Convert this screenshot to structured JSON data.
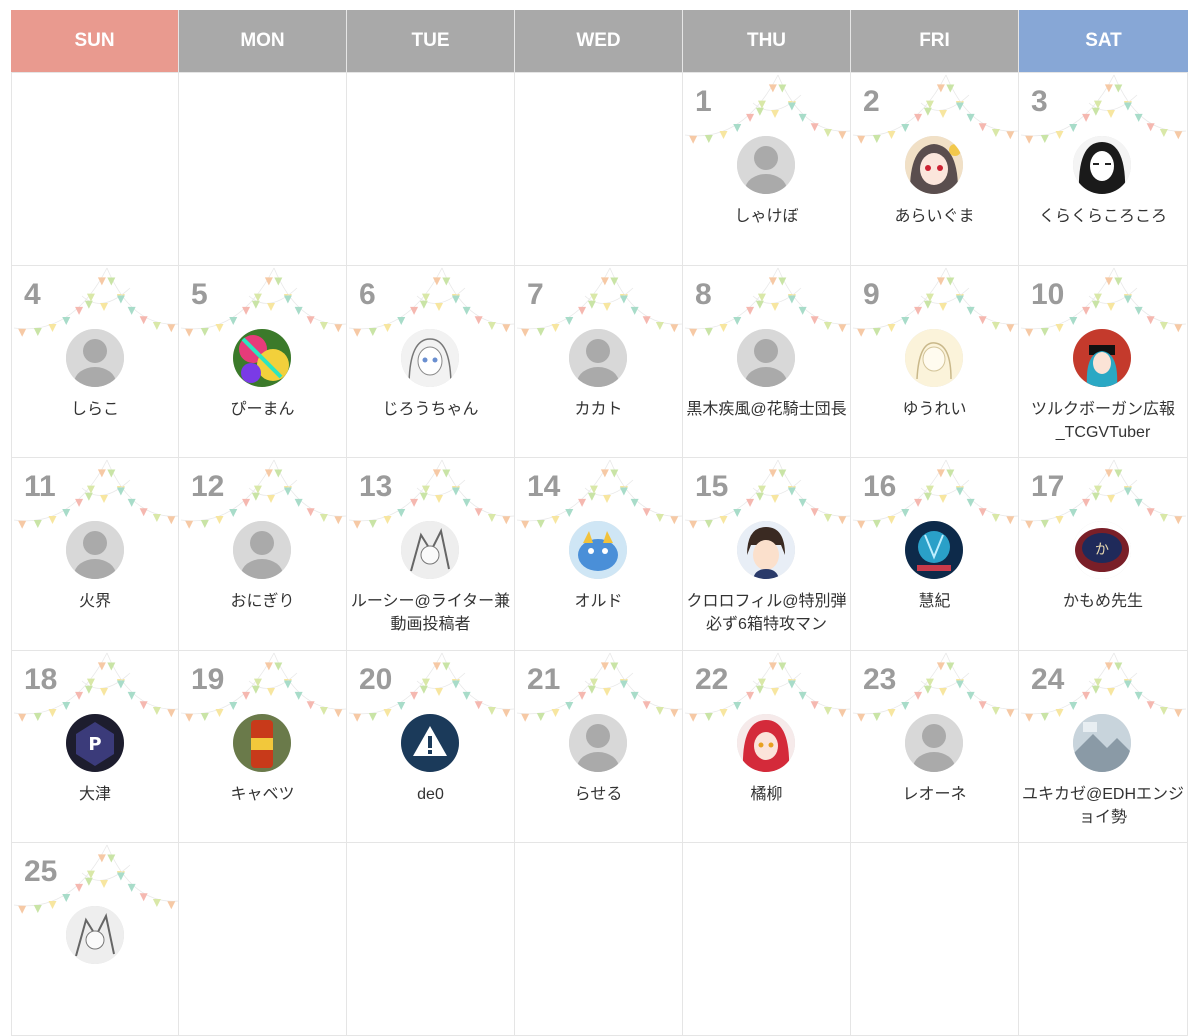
{
  "weekdays": [
    {
      "label": "SUN",
      "color": "#e99a8f"
    },
    {
      "label": "MON",
      "color": "#a9a9a9"
    },
    {
      "label": "TUE",
      "color": "#a9a9a9"
    },
    {
      "label": "WED",
      "color": "#a9a9a9"
    },
    {
      "label": "THU",
      "color": "#a9a9a9"
    },
    {
      "label": "FRI",
      "color": "#a9a9a9"
    },
    {
      "label": "SAT",
      "color": "#87a7d6"
    }
  ],
  "days": [
    null,
    null,
    null,
    null,
    {
      "day": "1",
      "name": "しゃけぼ",
      "avatar": "default-avatar"
    },
    {
      "day": "2",
      "name": "あらいぐま",
      "avatar": "anime-girl-avatar"
    },
    {
      "day": "3",
      "name": "くらくらころころ",
      "avatar": "manga-girl-avatar"
    },
    {
      "day": "4",
      "name": "しらこ",
      "avatar": "default-avatar"
    },
    {
      "day": "5",
      "name": "ぴーまん",
      "avatar": "colorful-avatar"
    },
    {
      "day": "6",
      "name": "じろうちゃん",
      "avatar": "sketch-girl-avatar"
    },
    {
      "day": "7",
      "name": "カカト",
      "avatar": "default-avatar"
    },
    {
      "day": "8",
      "name": "黒木疾風@花騎士団長",
      "avatar": "default-avatar"
    },
    {
      "day": "9",
      "name": "ゆうれい",
      "avatar": "pastel-sketch-avatar"
    },
    {
      "day": "10",
      "name": "ツルクボーガン広報_TCGVTuber",
      "avatar": "vtuber-avatar"
    },
    {
      "day": "11",
      "name": "火界",
      "avatar": "default-avatar"
    },
    {
      "day": "12",
      "name": "おにぎり",
      "avatar": "default-avatar"
    },
    {
      "day": "13",
      "name": "ルーシー@ライター兼動画投稿者",
      "avatar": "sketch-character-avatar"
    },
    {
      "day": "14",
      "name": "オルド",
      "avatar": "blue-creature-avatar"
    },
    {
      "day": "15",
      "name": "クロロフィル@特別弾必ず6箱特攻マン",
      "avatar": "anime-boy-avatar"
    },
    {
      "day": "16",
      "name": "慧紀",
      "avatar": "blue-art-avatar"
    },
    {
      "day": "17",
      "name": "かもめ先生",
      "avatar": "badge-avatar"
    },
    {
      "day": "18",
      "name": "大津",
      "avatar": "p-logo-avatar"
    },
    {
      "day": "19",
      "name": "キャベツ",
      "avatar": "drink-can-avatar"
    },
    {
      "day": "20",
      "name": "de0",
      "avatar": "warning-logo-avatar"
    },
    {
      "day": "21",
      "name": "らせる",
      "avatar": "default-avatar"
    },
    {
      "day": "22",
      "name": "橘柳",
      "avatar": "red-hair-avatar"
    },
    {
      "day": "23",
      "name": "レオーネ",
      "avatar": "default-avatar"
    },
    {
      "day": "24",
      "name": "ユキカゼ@EDHエンジョイ勢",
      "avatar": "photo-avatar"
    },
    {
      "day": "25",
      "name": "",
      "avatar": "sketch-character-avatar"
    },
    null,
    null,
    null,
    null,
    null,
    null
  ]
}
